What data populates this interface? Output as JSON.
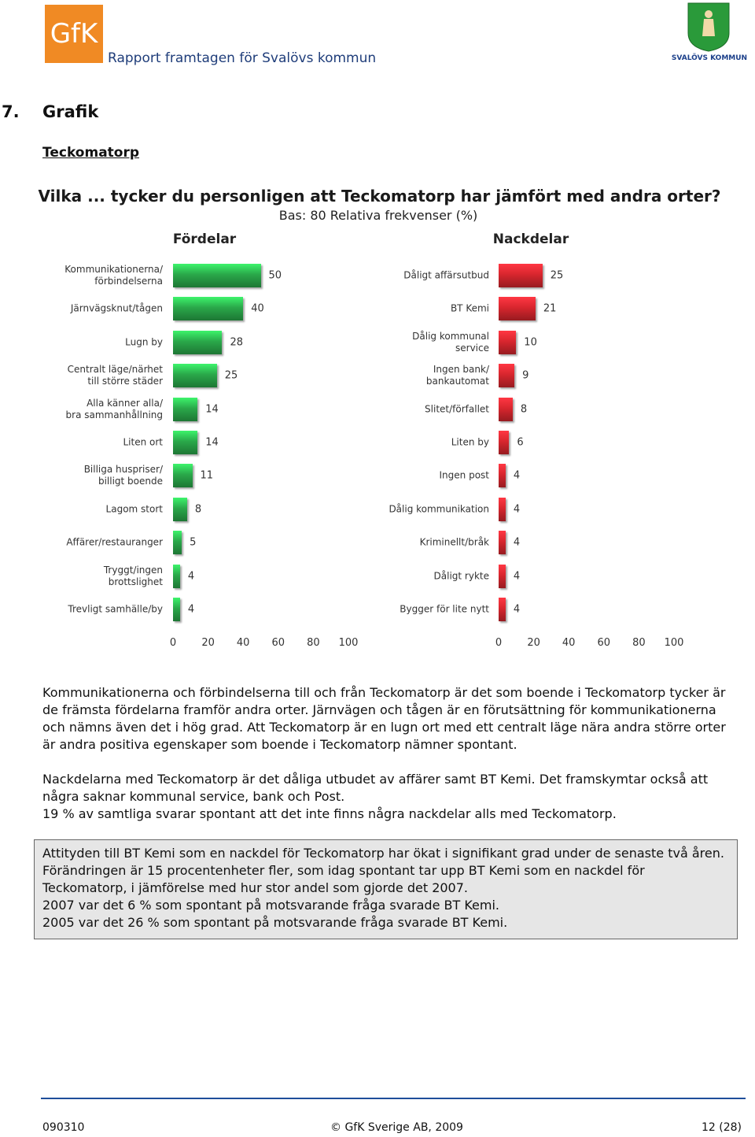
{
  "header": {
    "logo": "GfK",
    "report": "Rapport framtagen för Svalövs kommun",
    "crest": "SVALÖVS KOMMUN"
  },
  "section": {
    "number": "7.",
    "title": "Grafik",
    "subtitle": "Teckomatorp"
  },
  "figure": {
    "title": "Vilka ... tycker du personligen att Teckomatorp har jämfört med andra orter?",
    "subtitle": "Bas: 80  Relativa frekvenser (%)"
  },
  "chart_data": [
    {
      "type": "bar",
      "orientation": "horizontal",
      "title": "Fördelar",
      "color": "#2aa84a",
      "categories": [
        "Kommunikationerna/\nförbindelserna",
        "Järnvägsknut/tågen",
        "Lugn by",
        "Centralt läge/närhet\ntill större städer",
        "Alla känner alla/\nbra sammanhållning",
        "Liten ort",
        "Billiga huspriser/\nbilligt boende",
        "Lagom stort",
        "Affärer/restauranger",
        "Tryggt/ingen\nbrottslighet",
        "Trevligt samhälle/by"
      ],
      "values": [
        50,
        40,
        28,
        25,
        14,
        14,
        11,
        8,
        5,
        4,
        4
      ],
      "xlim": [
        0,
        100
      ],
      "xticks": [
        0,
        20,
        40,
        60,
        80,
        100
      ]
    },
    {
      "type": "bar",
      "orientation": "horizontal",
      "title": "Nackdelar",
      "color": "#d8262e",
      "categories": [
        "Dåligt affärsutbud",
        "BT Kemi",
        "Dålig kommunal\nservice",
        "Ingen bank/\nbankautomat",
        "Slitet/förfallet",
        "Liten by",
        "Ingen post",
        "Dålig kommunikation",
        "Kriminellt/bråk",
        "Dåligt rykte",
        "Bygger för lite nytt"
      ],
      "values": [
        25,
        21,
        10,
        9,
        8,
        6,
        4,
        4,
        4,
        4,
        4
      ],
      "xlim": [
        0,
        100
      ],
      "xticks": [
        0,
        20,
        40,
        60,
        80,
        100
      ]
    }
  ],
  "paragraphs": [
    [
      "Kommunikationerna och förbindelserna till och från Teckomatorp är det som boende i Teckomatorp tycker är de främsta fördelarna framför andra orter. Järnvägen och tågen är en förutsättning för kommunikationerna och nämns även det i hög grad. Att Teckomatorp är en lugn ort med ett centralt läge nära andra större orter är andra positiva egenskaper som boende i Teckomatorp nämner spontant."
    ],
    [
      "Nackdelarna med Teckomatorp är det dåliga utbudet av affärer samt BT Kemi. Det framskymtar också att några saknar kommunal service, bank och Post.",
      "19 % av samtliga svarar spontant att det inte finns några nackdelar alls med Teckomatorp."
    ]
  ],
  "box": [
    "Attityden till BT Kemi som en nackdel för Teckomatorp har ökat i signifikant grad under de senaste två åren. Förändringen är 15 procentenheter fler, som idag spontant tar upp BT Kemi som en nackdel för Teckomatorp, i jämförelse med hur stor andel som gjorde det 2007.",
    "2007 var det 6 % som spontant på motsvarande fråga svarade BT Kemi.",
    "2005 var det 26 % som spontant på motsvarande fråga svarade BT Kemi."
  ],
  "footer": {
    "date": "090310",
    "copyright": "© GfK Sverige AB, 2009",
    "page": "12 (28)"
  }
}
